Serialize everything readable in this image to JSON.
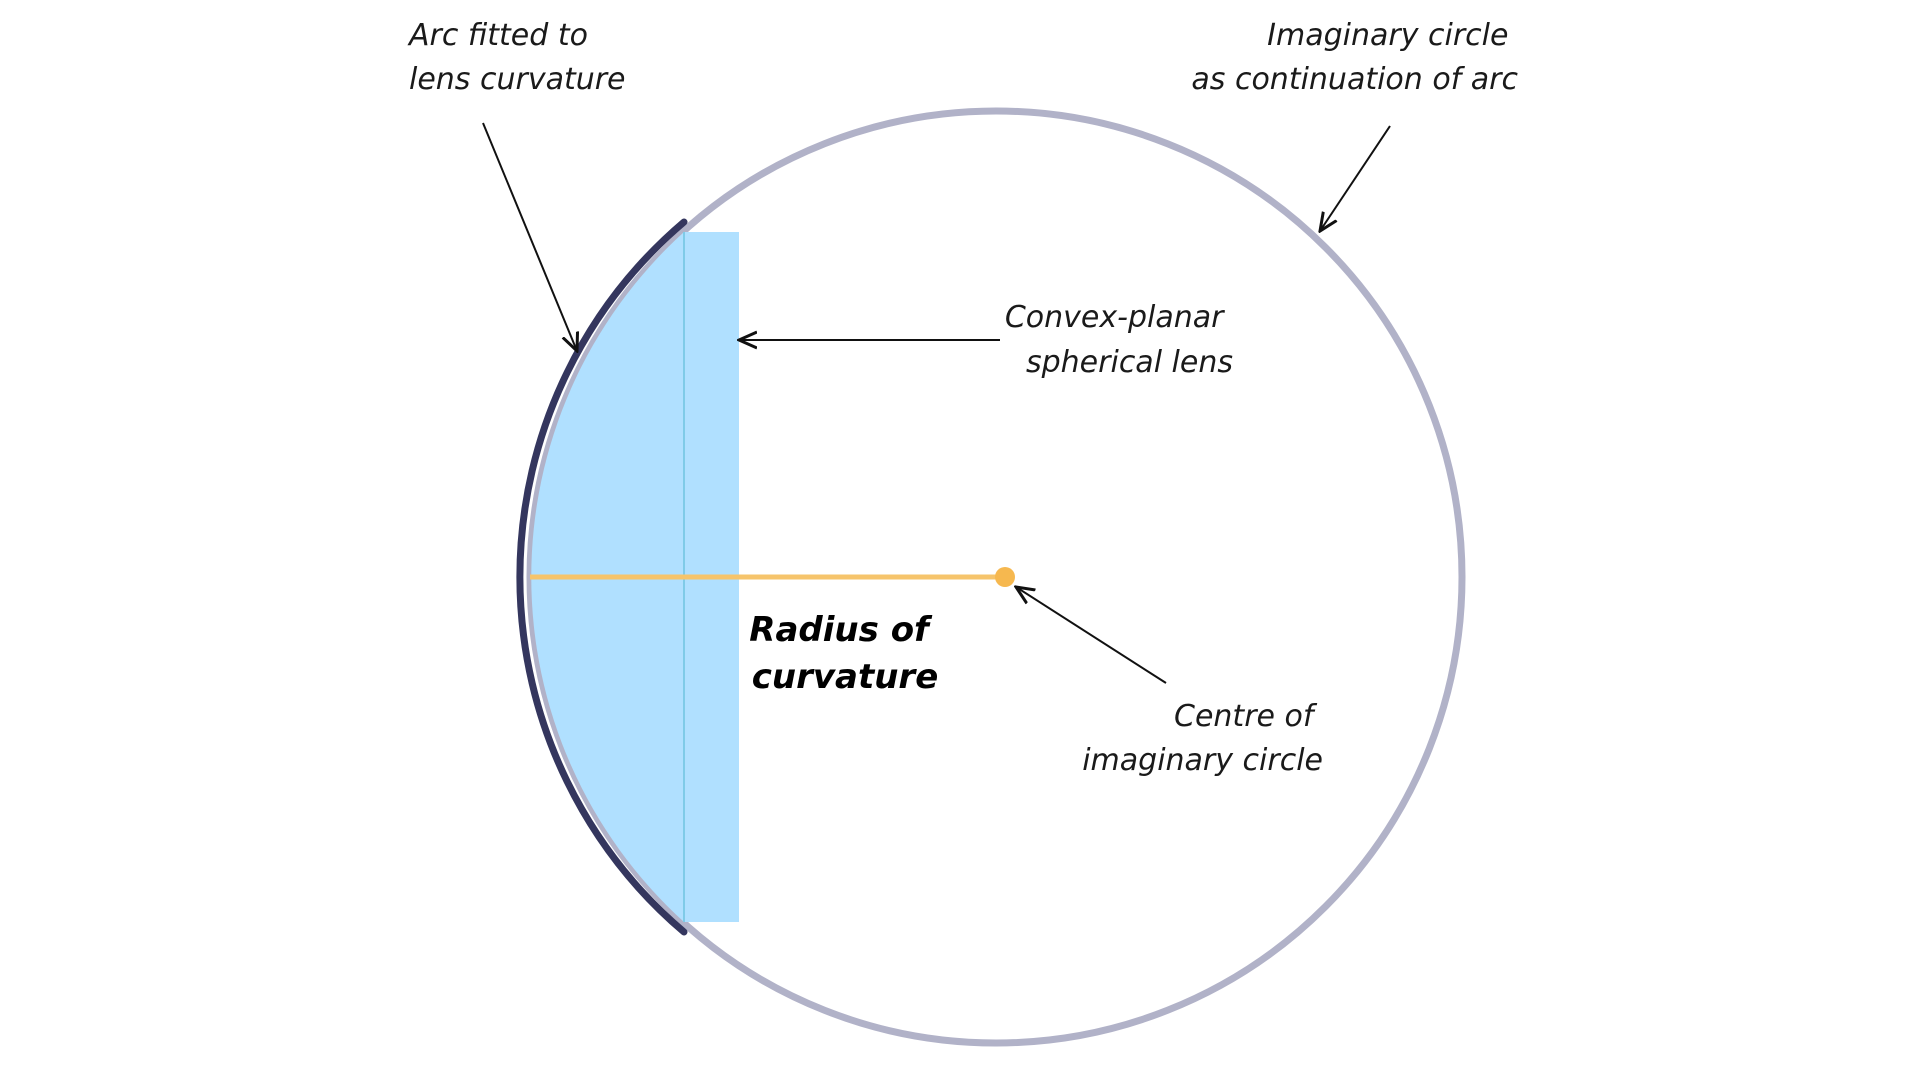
{
  "labels": {
    "arc": [
      "Arc fitted to",
      "lens curvature"
    ],
    "circle": [
      "Imaginary circle",
      "as continuation of arc"
    ],
    "lens": [
      "Convex-planar",
      "spherical lens"
    ],
    "radius": [
      "Radius of",
      "curvature"
    ],
    "centre": [
      "Centre of",
      "imaginary circle"
    ]
  },
  "colors": {
    "circle_stroke": "#b1b2c8",
    "arc_stroke": "#34365e",
    "lens_fill": "#b0e0ff",
    "lens_line": "#7fcbe8",
    "radius_line": "#f6c46b",
    "centre_dot": "#f6b84f",
    "pointer": "#111111"
  }
}
